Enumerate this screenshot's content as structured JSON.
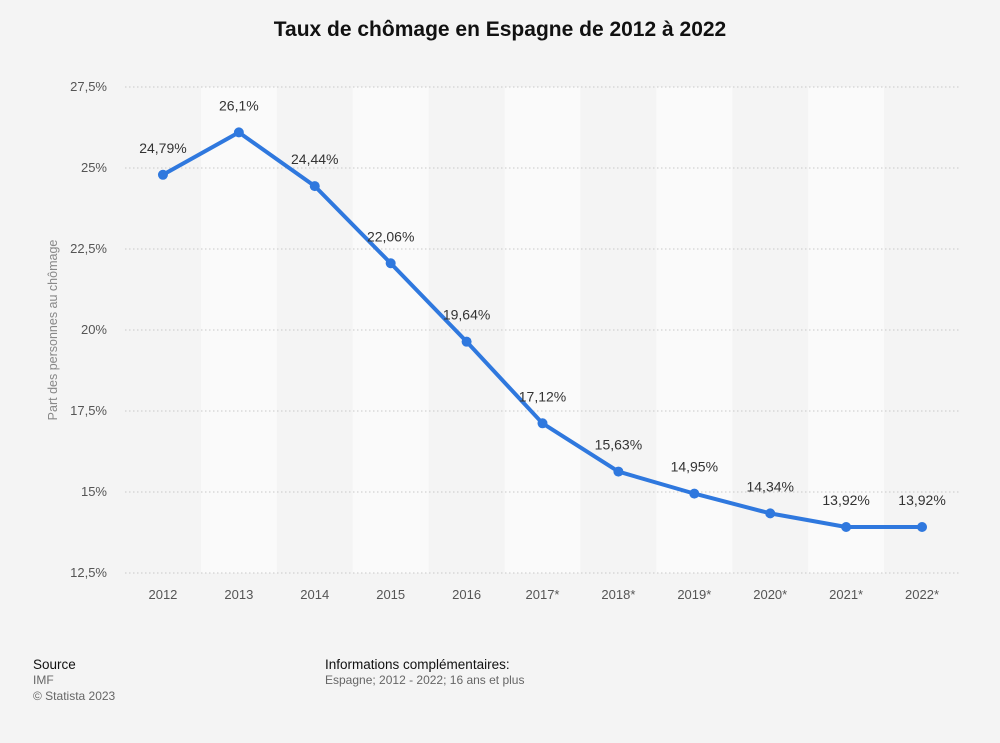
{
  "title": "Taux de chômage en Espagne de 2012 à 2022",
  "colors": {
    "line": "#2f78de",
    "band": "#fafafa",
    "grid": "#c8c8c8",
    "background": "#f4f4f4"
  },
  "chart_data": {
    "type": "line",
    "categories": [
      "2012",
      "2013",
      "2014",
      "2015",
      "2016",
      "2017*",
      "2018*",
      "2019*",
      "2020*",
      "2021*",
      "2022*"
    ],
    "values": [
      24.79,
      26.1,
      24.44,
      22.06,
      19.64,
      17.12,
      15.63,
      14.95,
      14.34,
      13.92,
      13.92
    ],
    "data_labels": [
      "24,79%",
      "26,1%",
      "24,44%",
      "22,06%",
      "19,64%",
      "17,12%",
      "15,63%",
      "14,95%",
      "14,34%",
      "13,92%",
      "13,92%"
    ],
    "ylabel": "Part des personnes au chômage",
    "ylim": [
      12.5,
      27.5
    ],
    "yticks": [
      12.5,
      15,
      17.5,
      20,
      22.5,
      25,
      27.5
    ],
    "ytick_labels": [
      "12,5%",
      "15%",
      "17,5%",
      "20%",
      "22,5%",
      "25%",
      "27,5%"
    ],
    "grid": true
  },
  "footer": {
    "source_heading": "Source",
    "source_name": "IMF",
    "copyright": "© Statista 2023",
    "info_heading": "Informations complémentaires:",
    "info_text": "Espagne; 2012 - 2022; 16 ans et plus"
  }
}
